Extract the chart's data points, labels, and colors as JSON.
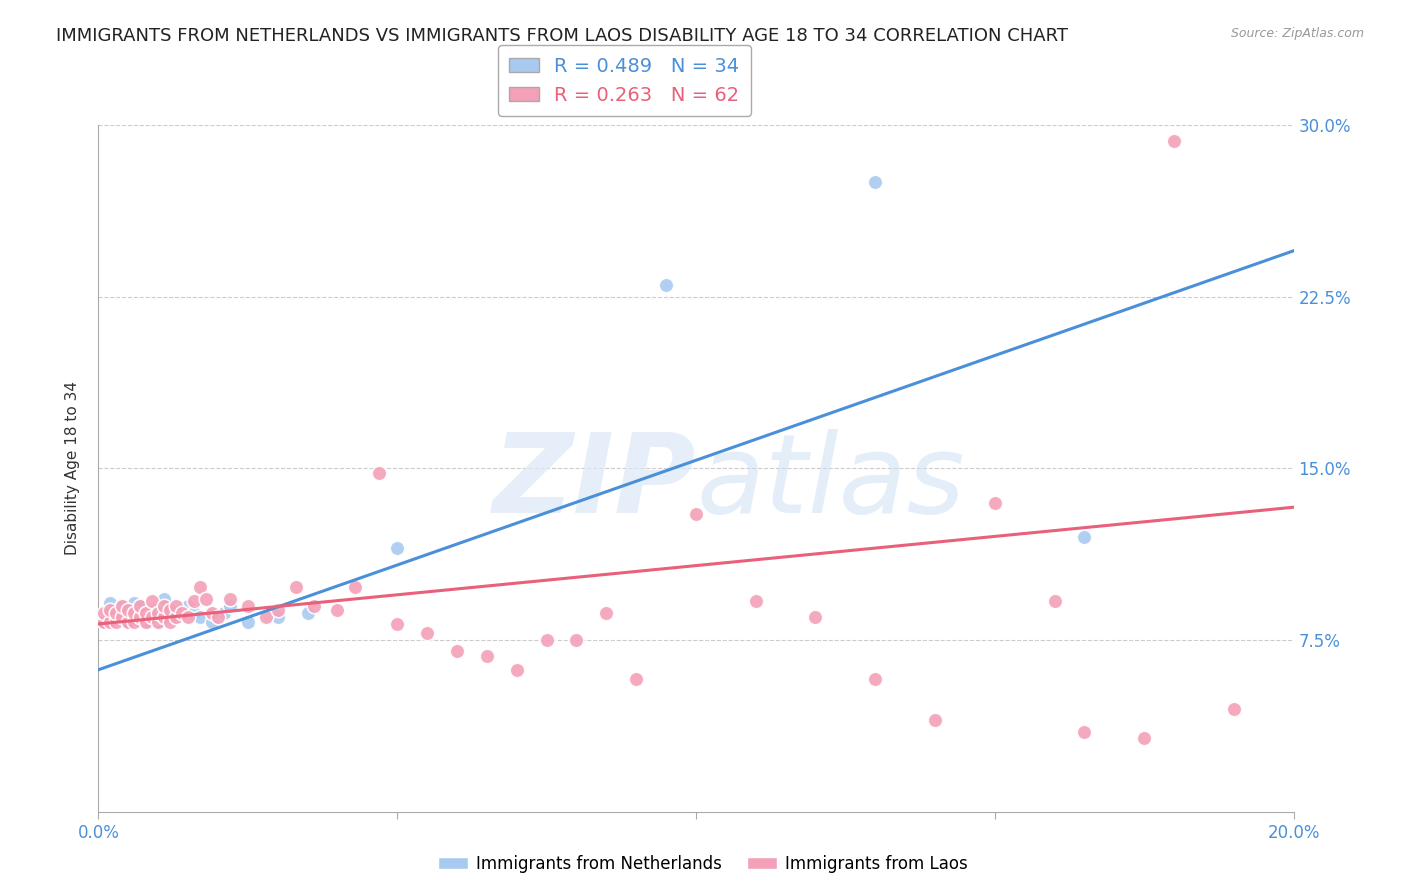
{
  "title": "IMMIGRANTS FROM NETHERLANDS VS IMMIGRANTS FROM LAOS DISABILITY AGE 18 TO 34 CORRELATION CHART",
  "source": "Source: ZipAtlas.com",
  "xlabel": "",
  "ylabel": "Disability Age 18 to 34",
  "xlim": [
    0.0,
    0.2
  ],
  "ylim": [
    0.0,
    0.3
  ],
  "xticks": [
    0.0,
    0.05,
    0.1,
    0.15,
    0.2
  ],
  "xticklabels": [
    "0.0%",
    "",
    "",
    "",
    "20.0%"
  ],
  "yticks": [
    0.0,
    0.075,
    0.15,
    0.225,
    0.3
  ],
  "yticklabels": [
    "",
    "7.5%",
    "15.0%",
    "22.5%",
    "30.0%"
  ],
  "background_color": "#ffffff",
  "grid_color": "#cccccc",
  "watermark": "ZIPatlas",
  "series": [
    {
      "name": "Immigrants from Netherlands",
      "R": 0.489,
      "N": 34,
      "color": "#a8caf0",
      "line_color": "#4a90d9",
      "x": [
        0.001,
        0.002,
        0.003,
        0.004,
        0.004,
        0.005,
        0.005,
        0.006,
        0.006,
        0.007,
        0.007,
        0.008,
        0.008,
        0.009,
        0.01,
        0.01,
        0.011,
        0.011,
        0.012,
        0.013,
        0.014,
        0.015,
        0.016,
        0.017,
        0.019,
        0.021,
        0.022,
        0.025,
        0.03,
        0.035,
        0.05,
        0.095,
        0.13,
        0.165
      ],
      "y": [
        0.083,
        0.091,
        0.085,
        0.087,
        0.09,
        0.083,
        0.087,
        0.086,
        0.091,
        0.085,
        0.09,
        0.083,
        0.087,
        0.088,
        0.083,
        0.085,
        0.087,
        0.093,
        0.088,
        0.085,
        0.087,
        0.09,
        0.087,
        0.085,
        0.083,
        0.087,
        0.09,
        0.083,
        0.085,
        0.087,
        0.115,
        0.23,
        0.275,
        0.12
      ],
      "trend_x": [
        0.0,
        0.2
      ],
      "trend_y": [
        0.062,
        0.245
      ]
    },
    {
      "name": "Immigrants from Laos",
      "R": 0.263,
      "N": 62,
      "color": "#f4a0b8",
      "line_color": "#e8607a",
      "x": [
        0.001,
        0.001,
        0.002,
        0.002,
        0.003,
        0.003,
        0.004,
        0.004,
        0.005,
        0.005,
        0.006,
        0.006,
        0.007,
        0.007,
        0.008,
        0.008,
        0.009,
        0.009,
        0.01,
        0.01,
        0.011,
        0.011,
        0.012,
        0.012,
        0.013,
        0.013,
        0.014,
        0.015,
        0.016,
        0.017,
        0.018,
        0.019,
        0.02,
        0.022,
        0.025,
        0.028,
        0.03,
        0.033,
        0.036,
        0.04,
        0.043,
        0.047,
        0.05,
        0.055,
        0.06,
        0.065,
        0.07,
        0.075,
        0.08,
        0.085,
        0.09,
        0.1,
        0.11,
        0.12,
        0.13,
        0.14,
        0.15,
        0.16,
        0.165,
        0.175,
        0.18,
        0.19
      ],
      "y": [
        0.083,
        0.087,
        0.083,
        0.088,
        0.083,
        0.087,
        0.085,
        0.09,
        0.083,
        0.088,
        0.083,
        0.087,
        0.085,
        0.09,
        0.083,
        0.087,
        0.085,
        0.092,
        0.083,
        0.087,
        0.085,
        0.09,
        0.083,
        0.088,
        0.085,
        0.09,
        0.087,
        0.085,
        0.092,
        0.098,
        0.093,
        0.087,
        0.085,
        0.093,
        0.09,
        0.085,
        0.088,
        0.098,
        0.09,
        0.088,
        0.098,
        0.148,
        0.082,
        0.078,
        0.07,
        0.068,
        0.062,
        0.075,
        0.075,
        0.087,
        0.058,
        0.13,
        0.092,
        0.085,
        0.058,
        0.04,
        0.135,
        0.092,
        0.035,
        0.032,
        0.293,
        0.045
      ],
      "trend_x": [
        0.0,
        0.2
      ],
      "trend_y": [
        0.082,
        0.133
      ]
    }
  ],
  "title_fontsize": 13,
  "axis_label_fontsize": 11,
  "tick_fontsize": 12,
  "tick_color": "#4a90d9",
  "axis_color": "#aaaaaa"
}
